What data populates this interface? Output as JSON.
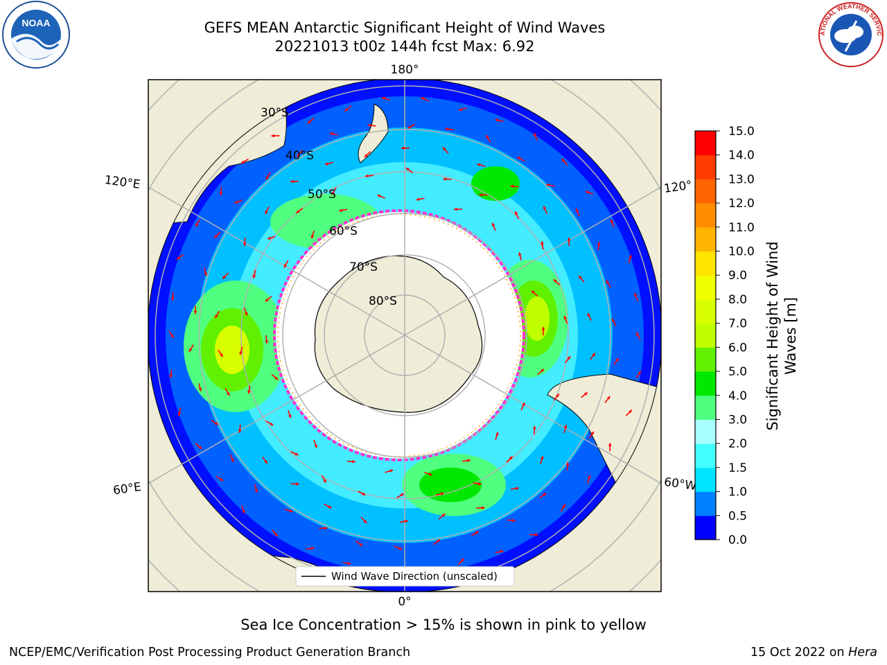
{
  "title": {
    "line1": "GEFS MEAN Antarctic Significant Height of Wind Waves",
    "line2": "20221013 t00z 144h fcst   Max: 6.92"
  },
  "map": {
    "projection": "south-polar-stereographic",
    "meridian_labels": {
      "top": "180°",
      "bottom": "0°",
      "left_upper": "120°E",
      "left_lower": "60°E",
      "right_upper": "120°",
      "right_lower": "60°W"
    },
    "latitude_labels": [
      "30°S",
      "40°S",
      "50°S",
      "60°S",
      "70°S",
      "80°S"
    ],
    "legend_text": "Wind Wave Direction (unscaled)",
    "vector_color": "#ff0000",
    "land_color": "#efedd8",
    "ice_edge_colors": [
      "#ff33cc",
      "#ffaa00"
    ]
  },
  "colorbar": {
    "label_line1": "Significant Height of Wind",
    "label_line2": "Waves [m]",
    "ticks": [
      "0.0",
      "0.5",
      "1.0",
      "1.5",
      "2.0",
      "3.0",
      "4.0",
      "5.0",
      "6.0",
      "7.0",
      "8.0",
      "9.0",
      "10.0",
      "11.0",
      "12.0",
      "13.0",
      "14.0",
      "15.0"
    ],
    "colors": [
      "#0000ff",
      "#0080ff",
      "#00e5ff",
      "#44ffff",
      "#a8ffff",
      "#50ff80",
      "#00e800",
      "#60f000",
      "#c0ff00",
      "#d8ff00",
      "#f0ff00",
      "#ffe400",
      "#ffb400",
      "#ff8c00",
      "#ff6400",
      "#ff3c00",
      "#ff0000"
    ]
  },
  "note": "Sea Ice Concentration > 15% is shown in pink to yellow",
  "footer": {
    "left": "NCEP/EMC/Verification Post Processing Product Generation Branch",
    "right_prefix": "15 Oct 2022 on ",
    "right_host": "Hera"
  },
  "logos": {
    "noaa_text": "NOAA",
    "nws_text": "NATIONAL WEATHER SERVICE"
  }
}
